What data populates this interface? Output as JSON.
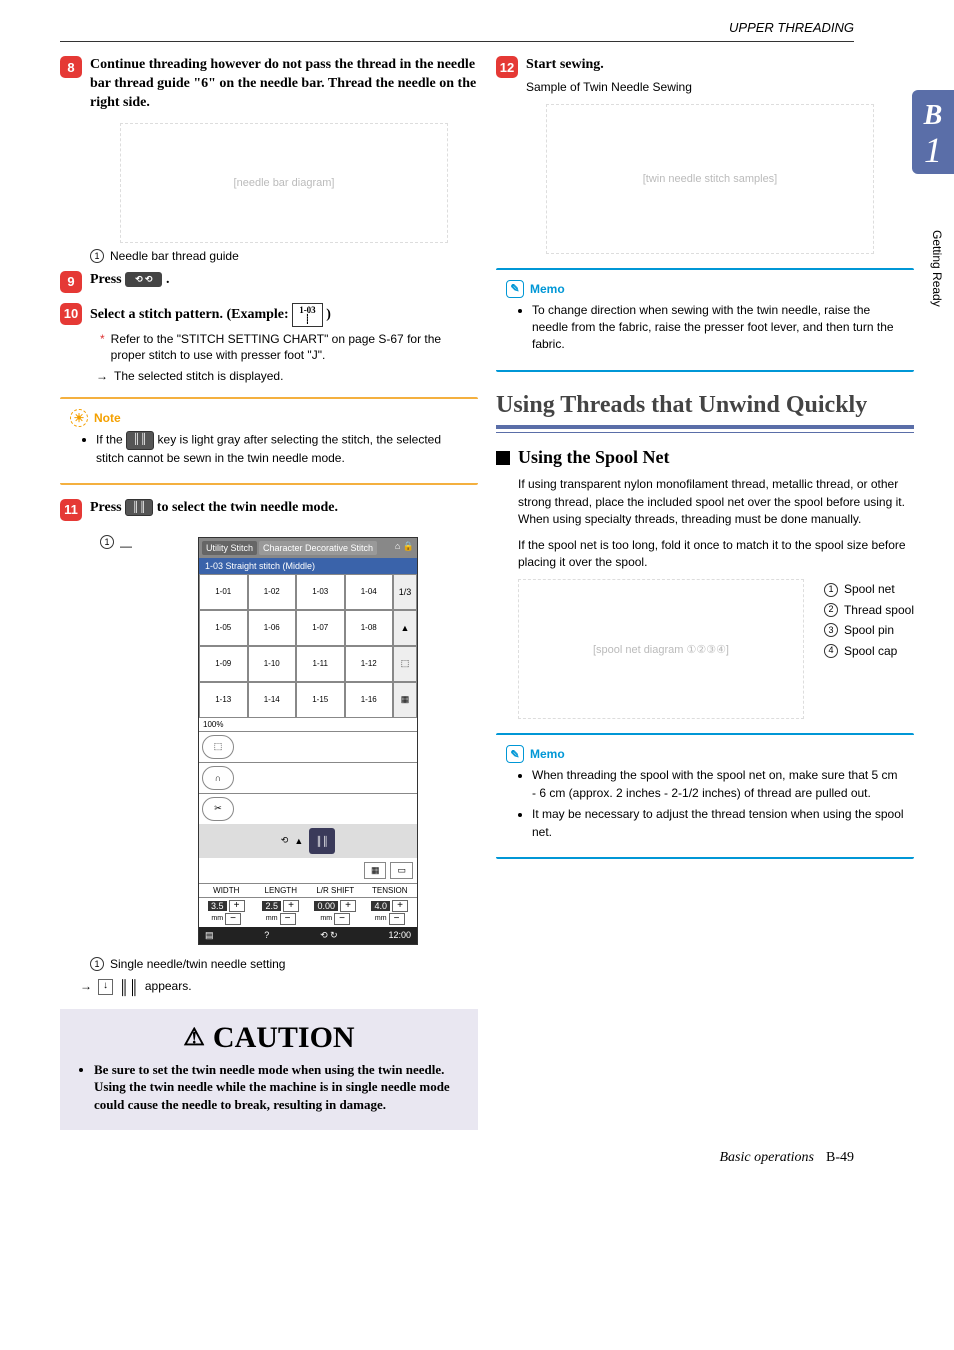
{
  "header": {
    "section": "UPPER THREADING"
  },
  "tab": {
    "letter": "B",
    "number": "1",
    "side_label": "Getting Ready"
  },
  "left": {
    "step8": {
      "title": "Continue threading however do not pass the thread in the needle bar thread guide \"6\" on the needle bar. Thread the needle on the right side.",
      "legend1": "Needle bar thread guide"
    },
    "step9": {
      "prefix": "Press",
      "suffix": "."
    },
    "step10": {
      "title_a": "Select a stitch pattern. (Example: ",
      "title_b": ")",
      "stitch_code": "1-03",
      "note": "Refer to the \"STITCH SETTING CHART\" on page S-67 for the proper stitch to use with presser foot \"J\".",
      "arrow": "The selected stitch is displayed."
    },
    "note_box": {
      "title": "Note",
      "text_a": "If the ",
      "text_b": " key is light gray after selecting the stitch, the selected stitch cannot be sewn in the twin needle mode."
    },
    "step11": {
      "prefix": "Press ",
      "suffix": " to select the twin needle mode.",
      "legend1": "Single needle/twin needle setting",
      "arrow": " appears."
    },
    "screenshot": {
      "tabs": [
        "Utility Stitch",
        "Character Decorative Stitch"
      ],
      "bar": "1-03  Straight stitch (Middle)",
      "cells": [
        "1-01",
        "1-02",
        "1-03",
        "1-04",
        "1-05",
        "1-06",
        "1-07",
        "1-08",
        "1-09",
        "1-10",
        "1-11",
        "1-12",
        "1-13",
        "1-14",
        "1-15",
        "1-16"
      ],
      "side_frac": "1/3",
      "labels": [
        "WIDTH",
        "LENGTH",
        "L/R SHIFT",
        "TENSION"
      ],
      "vals": [
        "3.5",
        "2.5",
        "0.00",
        "4.0"
      ],
      "pct": "100%",
      "time": "12:00"
    },
    "caution": {
      "title": "CAUTION",
      "text": "Be sure to set the twin needle mode when using the twin needle. Using the twin needle while the machine is in single needle mode could cause the needle to break, resulting in damage."
    }
  },
  "right": {
    "step12": {
      "title": "Start sewing.",
      "sub": "Sample of Twin Needle Sewing"
    },
    "memo1": {
      "title": "Memo",
      "text": "To change direction when sewing with the twin needle, raise the needle from the fabric, raise the presser foot lever, and then turn the fabric."
    },
    "section": {
      "title": "Using Threads that Unwind Quickly"
    },
    "subsection": {
      "title": "Using the Spool Net"
    },
    "para1": "If using transparent nylon monofilament thread, metallic thread, or other strong thread, place the included spool net over the spool before using it. When using specialty threads, threading must be done manually.",
    "para2": "If the spool net is too long, fold it once to match it to the spool size before placing it over the spool.",
    "spool_legend": [
      "Spool net",
      "Thread spool",
      "Spool pin",
      "Spool cap"
    ],
    "memo2": {
      "title": "Memo",
      "b1": "When threading the spool with the spool net on, make sure that 5 cm - 6 cm (approx. 2 inches - 2-1/2 inches) of thread are pulled out.",
      "b2": "It may be necessary to adjust the thread tension when using the spool net."
    }
  },
  "footer": {
    "label": "Basic operations",
    "page": "B-49"
  }
}
